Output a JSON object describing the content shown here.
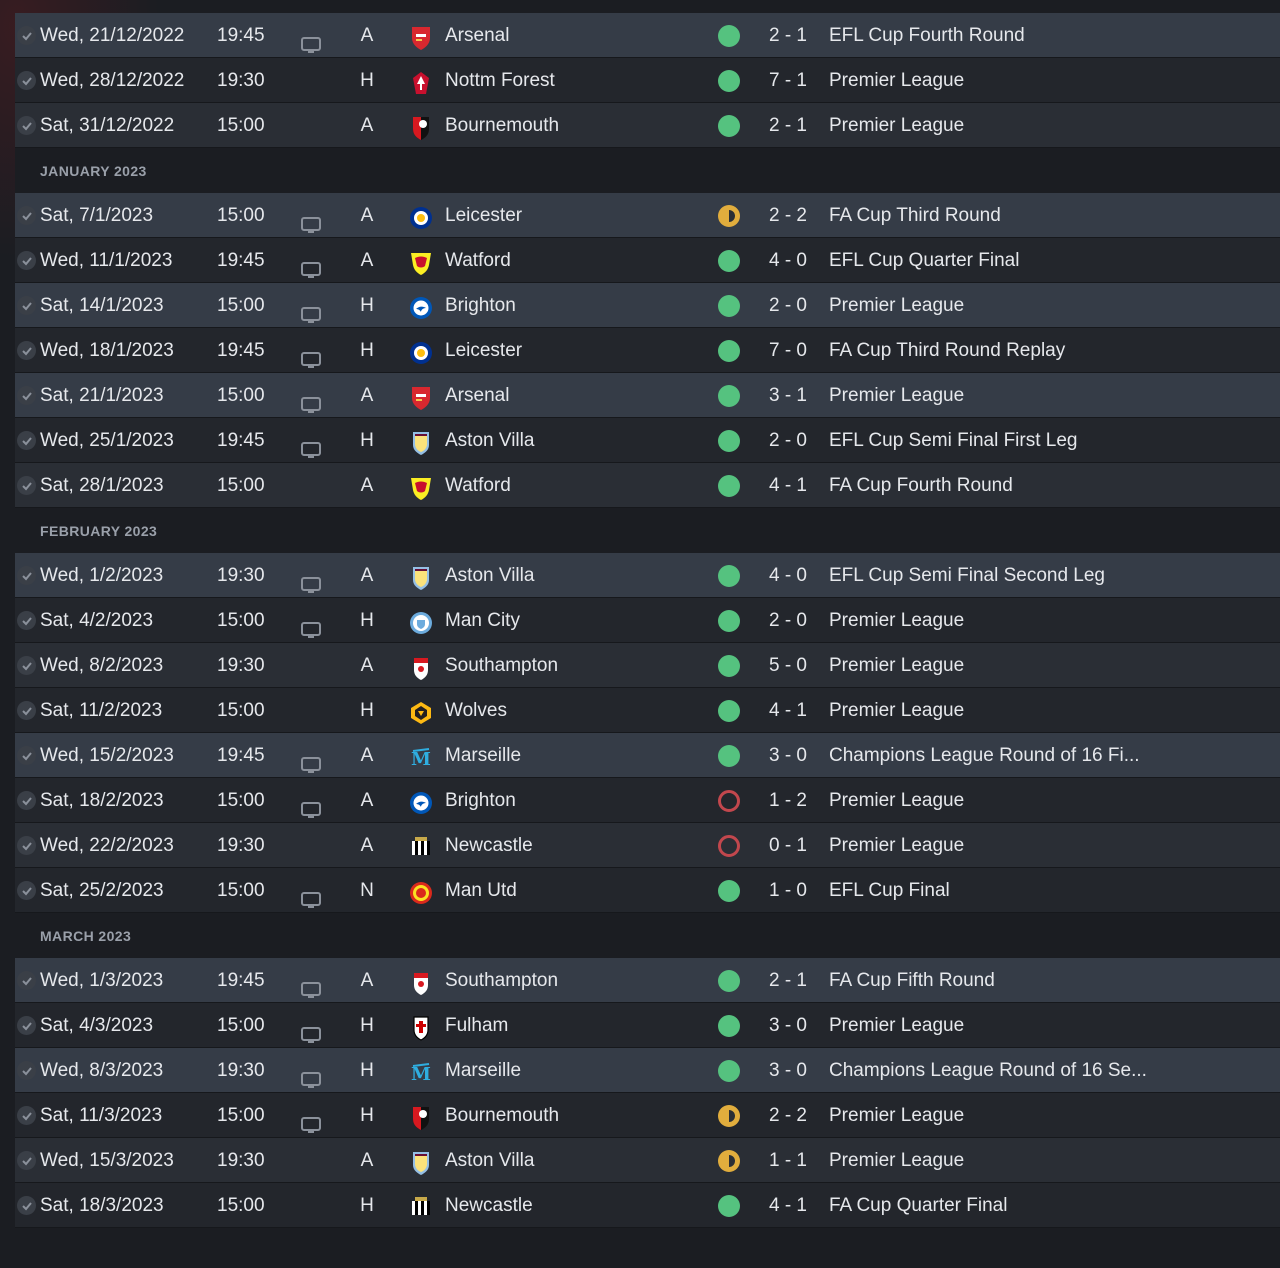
{
  "colors": {
    "win": "#55c27f",
    "loss": "#c2474d",
    "draw": "#e1ad3d"
  },
  "groups": [
    {
      "month": "",
      "matches": [
        {
          "date": "Wed, 21/12/2022",
          "time": "19:45",
          "tv": true,
          "venue": "A",
          "team": "Arsenal",
          "crest": "arsenal",
          "result": "win",
          "score": "2 - 1",
          "competition": "EFL Cup Fourth Round"
        },
        {
          "date": "Wed, 28/12/2022",
          "time": "19:30",
          "tv": false,
          "venue": "H",
          "team": "Nottm Forest",
          "crest": "forest",
          "result": "win",
          "score": "7 - 1",
          "competition": "Premier League"
        },
        {
          "date": "Sat, 31/12/2022",
          "time": "15:00",
          "tv": false,
          "venue": "A",
          "team": "Bournemouth",
          "crest": "bournemouth",
          "result": "win",
          "score": "2 - 1",
          "competition": "Premier League"
        }
      ]
    },
    {
      "month": "JANUARY 2023",
      "matches": [
        {
          "date": "Sat, 7/1/2023",
          "time": "15:00",
          "tv": true,
          "venue": "A",
          "team": "Leicester",
          "crest": "leicester",
          "result": "draw",
          "score": "2 - 2",
          "competition": "FA Cup Third Round"
        },
        {
          "date": "Wed, 11/1/2023",
          "time": "19:45",
          "tv": true,
          "venue": "A",
          "team": "Watford",
          "crest": "watford",
          "result": "win",
          "score": "4 - 0",
          "competition": "EFL Cup Quarter Final"
        },
        {
          "date": "Sat, 14/1/2023",
          "time": "15:00",
          "tv": true,
          "venue": "H",
          "team": "Brighton",
          "crest": "brighton",
          "result": "win",
          "score": "2 - 0",
          "competition": "Premier League"
        },
        {
          "date": "Wed, 18/1/2023",
          "time": "19:45",
          "tv": true,
          "venue": "H",
          "team": "Leicester",
          "crest": "leicester",
          "result": "win",
          "score": "7 - 0",
          "competition": "FA Cup Third Round Replay"
        },
        {
          "date": "Sat, 21/1/2023",
          "time": "15:00",
          "tv": true,
          "venue": "A",
          "team": "Arsenal",
          "crest": "arsenal",
          "result": "win",
          "score": "3 - 1",
          "competition": "Premier League"
        },
        {
          "date": "Wed, 25/1/2023",
          "time": "19:45",
          "tv": true,
          "venue": "H",
          "team": "Aston Villa",
          "crest": "villa",
          "result": "win",
          "score": "2 - 0",
          "competition": "EFL Cup Semi Final First Leg"
        },
        {
          "date": "Sat, 28/1/2023",
          "time": "15:00",
          "tv": false,
          "venue": "A",
          "team": "Watford",
          "crest": "watford",
          "result": "win",
          "score": "4 - 1",
          "competition": "FA Cup Fourth Round"
        }
      ]
    },
    {
      "month": "FEBRUARY 2023",
      "matches": [
        {
          "date": "Wed, 1/2/2023",
          "time": "19:30",
          "tv": true,
          "venue": "A",
          "team": "Aston Villa",
          "crest": "villa",
          "result": "win",
          "score": "4 - 0",
          "competition": "EFL Cup Semi Final Second Leg"
        },
        {
          "date": "Sat, 4/2/2023",
          "time": "15:00",
          "tv": true,
          "venue": "H",
          "team": "Man City",
          "crest": "city",
          "result": "win",
          "score": "2 - 0",
          "competition": "Premier League"
        },
        {
          "date": "Wed, 8/2/2023",
          "time": "19:30",
          "tv": false,
          "venue": "A",
          "team": "Southampton",
          "crest": "southampton",
          "result": "win",
          "score": "5 - 0",
          "competition": "Premier League"
        },
        {
          "date": "Sat, 11/2/2023",
          "time": "15:00",
          "tv": false,
          "venue": "H",
          "team": "Wolves",
          "crest": "wolves",
          "result": "win",
          "score": "4 - 1",
          "competition": "Premier League"
        },
        {
          "date": "Wed, 15/2/2023",
          "time": "19:45",
          "tv": true,
          "venue": "A",
          "team": "Marseille",
          "crest": "marseille",
          "result": "win",
          "score": "3 - 0",
          "competition": "Champions League Round of 16 Fi..."
        },
        {
          "date": "Sat, 18/2/2023",
          "time": "15:00",
          "tv": true,
          "venue": "A",
          "team": "Brighton",
          "crest": "brighton",
          "result": "loss",
          "score": "1 - 2",
          "competition": "Premier League"
        },
        {
          "date": "Wed, 22/2/2023",
          "time": "19:30",
          "tv": false,
          "venue": "A",
          "team": "Newcastle",
          "crest": "newcastle",
          "result": "loss",
          "score": "0 - 1",
          "competition": "Premier League"
        },
        {
          "date": "Sat, 25/2/2023",
          "time": "15:00",
          "tv": true,
          "venue": "N",
          "team": "Man Utd",
          "crest": "united",
          "result": "win",
          "score": "1 - 0",
          "competition": "EFL Cup Final"
        }
      ]
    },
    {
      "month": "MARCH 2023",
      "matches": [
        {
          "date": "Wed, 1/3/2023",
          "time": "19:45",
          "tv": true,
          "venue": "A",
          "team": "Southampton",
          "crest": "southampton",
          "result": "win",
          "score": "2 - 1",
          "competition": "FA Cup Fifth Round"
        },
        {
          "date": "Sat, 4/3/2023",
          "time": "15:00",
          "tv": true,
          "venue": "H",
          "team": "Fulham",
          "crest": "fulham",
          "result": "win",
          "score": "3 - 0",
          "competition": "Premier League"
        },
        {
          "date": "Wed, 8/3/2023",
          "time": "19:30",
          "tv": true,
          "venue": "H",
          "team": "Marseille",
          "crest": "marseille",
          "result": "win",
          "score": "3 - 0",
          "competition": "Champions League Round of 16 Se..."
        },
        {
          "date": "Sat, 11/3/2023",
          "time": "15:00",
          "tv": true,
          "venue": "H",
          "team": "Bournemouth",
          "crest": "bournemouth",
          "result": "draw",
          "score": "2 - 2",
          "competition": "Premier League"
        },
        {
          "date": "Wed, 15/3/2023",
          "time": "19:30",
          "tv": false,
          "venue": "A",
          "team": "Aston Villa",
          "crest": "villa",
          "result": "draw",
          "score": "1 - 1",
          "competition": "Premier League"
        },
        {
          "date": "Sat, 18/3/2023",
          "time": "15:00",
          "tv": false,
          "venue": "H",
          "team": "Newcastle",
          "crest": "newcastle",
          "result": "win",
          "score": "4 - 1",
          "competition": "FA Cup Quarter Final"
        }
      ]
    }
  ]
}
